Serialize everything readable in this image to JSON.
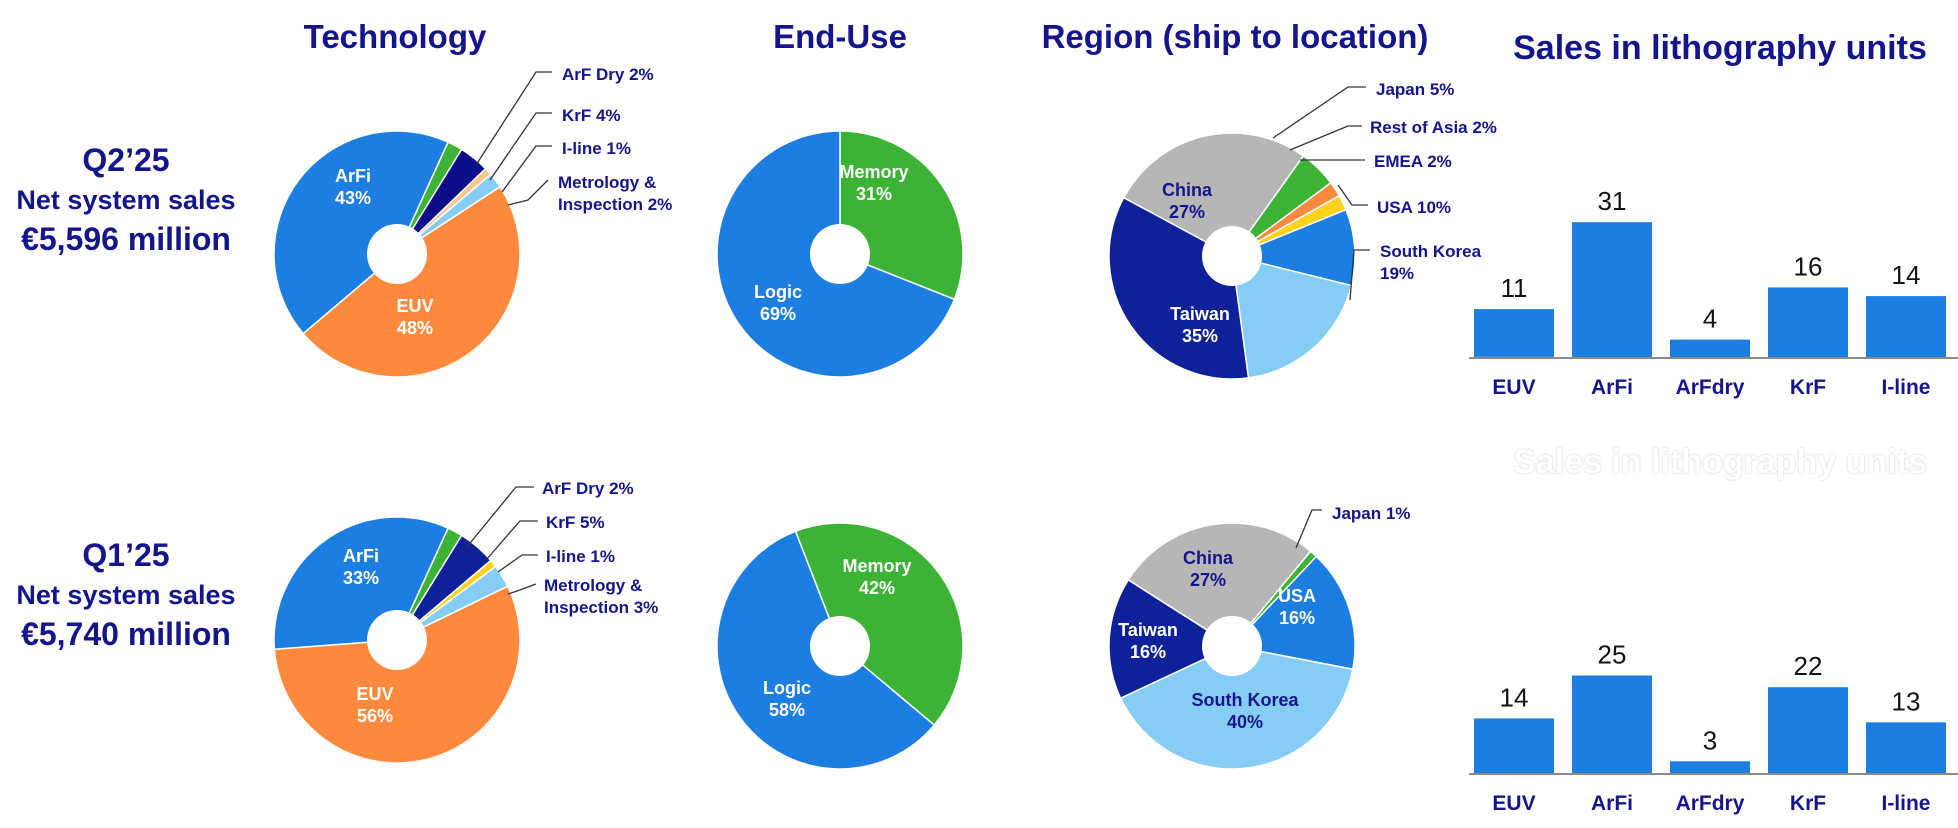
{
  "rows": [
    {
      "quarter": "Q2’25",
      "subtitle": "Net system sales",
      "amount": "€5,596 million"
    },
    {
      "quarter": "Q1’25",
      "subtitle": "Net system sales",
      "amount": "€5,740 million"
    }
  ],
  "titles": {
    "technology": "Technology",
    "end_use": "End-Use",
    "region": "Region (ship to location)",
    "lithography": "Sales in lithography units",
    "lithography_faded": "Sales in lithography units"
  },
  "colors": {
    "title_navy": "#14148c",
    "blue": "#1b7ee0",
    "orange": "#ff8a3d",
    "green": "#3cb335",
    "navy": "#0d0d8a",
    "peach": "#ffc58a",
    "light_blue": "#86cdf5",
    "yellow": "#ffd21f",
    "gray": "#b6b6b6",
    "dark_blue": "#0d2299",
    "bar_blue": "#1b7ee0"
  },
  "chart_data": [
    {
      "type": "pie",
      "id": "tech-q2",
      "title": "Technology",
      "slices": [
        {
          "label": "EUV",
          "value": 48,
          "color": "#ff8a3d"
        },
        {
          "label": "ArFi",
          "value": 43,
          "color": "#1b7ee0"
        },
        {
          "label": "ArF Dry",
          "value": 2,
          "color": "#3cb335"
        },
        {
          "label": "KrF",
          "value": 4,
          "color": "#0d0d8a"
        },
        {
          "label": "I-line",
          "value": 1,
          "color": "#ffc58a"
        },
        {
          "label": "Metrology & Inspection",
          "value": 2,
          "color": "#86cdf5"
        }
      ]
    },
    {
      "type": "pie",
      "id": "enduse-q2",
      "title": "End-Use",
      "slices": [
        {
          "label": "Memory",
          "value": 31,
          "color": "#3cb335"
        },
        {
          "label": "Logic",
          "value": 69,
          "color": "#1b7ee0"
        }
      ]
    },
    {
      "type": "pie",
      "id": "region-q2",
      "title": "Region (ship to location)",
      "slices": [
        {
          "label": "China",
          "value": 27,
          "color": "#b6b6b6"
        },
        {
          "label": "Japan",
          "value": 5,
          "color": "#3cb335"
        },
        {
          "label": "Rest of Asia",
          "value": 2,
          "color": "#ff8a3d"
        },
        {
          "label": "EMEA",
          "value": 2,
          "color": "#ffd21f"
        },
        {
          "label": "USA",
          "value": 10,
          "color": "#1b7ee0"
        },
        {
          "label": "South Korea",
          "value": 19,
          "color": "#86cdf5"
        },
        {
          "label": "Taiwan",
          "value": 35,
          "color": "#0d2299"
        }
      ]
    },
    {
      "type": "bar",
      "id": "lith-q2",
      "title": "Sales in lithography units",
      "categories": [
        "EUV",
        "ArFi",
        "ArFdry",
        "KrF",
        "I-line"
      ],
      "values": [
        11,
        31,
        4,
        16,
        14
      ],
      "ylim": [
        0,
        35
      ]
    },
    {
      "type": "pie",
      "id": "tech-q1",
      "title": "Technology",
      "slices": [
        {
          "label": "EUV",
          "value": 56,
          "color": "#ff8a3d"
        },
        {
          "label": "ArFi",
          "value": 33,
          "color": "#1b7ee0"
        },
        {
          "label": "ArF Dry",
          "value": 2,
          "color": "#3cb335"
        },
        {
          "label": "KrF",
          "value": 5,
          "color": "#0d2299"
        },
        {
          "label": "I-line",
          "value": 1,
          "color": "#ffd21f"
        },
        {
          "label": "Metrology & Inspection",
          "value": 3,
          "color": "#86cdf5"
        }
      ]
    },
    {
      "type": "pie",
      "id": "enduse-q1",
      "title": "End-Use",
      "slices": [
        {
          "label": "Memory",
          "value": 42,
          "color": "#3cb335"
        },
        {
          "label": "Logic",
          "value": 58,
          "color": "#1b7ee0"
        }
      ]
    },
    {
      "type": "pie",
      "id": "region-q1",
      "title": "Region (ship to location)",
      "slices": [
        {
          "label": "China",
          "value": 27,
          "color": "#b6b6b6"
        },
        {
          "label": "Japan",
          "value": 1,
          "color": "#3cb335"
        },
        {
          "label": "USA",
          "value": 16,
          "color": "#1b7ee0"
        },
        {
          "label": "South Korea",
          "value": 40,
          "color": "#86cdf5"
        },
        {
          "label": "Taiwan",
          "value": 16,
          "color": "#0d2299"
        }
      ]
    },
    {
      "type": "bar",
      "id": "lith-q1",
      "title": "Sales in lithography units",
      "categories": [
        "EUV",
        "ArFi",
        "ArFdry",
        "KrF",
        "I-line"
      ],
      "values": [
        14,
        25,
        3,
        22,
        13
      ],
      "ylim": [
        0,
        35
      ]
    }
  ],
  "labels": {
    "tech-q2": {
      "inside": [
        "EUV|48%",
        "ArFi|43%"
      ],
      "callouts": [
        "ArF Dry 2%",
        "KrF 4%",
        "I-line 1%",
        "Metrology &|Inspection 2%"
      ]
    },
    "enduse-q2": {
      "inside": [
        "Memory|31%",
        "Logic|69%"
      ]
    },
    "region-q2": {
      "inside": [
        "China|27%",
        "Taiwan|35%"
      ],
      "callouts": [
        "Japan 5%",
        "Rest of Asia 2%",
        "EMEA 2%",
        "USA 10%",
        "South Korea|19%"
      ]
    },
    "tech-q1": {
      "inside": [
        "EUV|56%",
        "ArFi|33%"
      ],
      "callouts": [
        "ArF Dry 2%",
        "KrF 5%",
        "I-line 1%",
        "Metrology &|Inspection 3%"
      ]
    },
    "enduse-q1": {
      "inside": [
        "Memory|42%",
        "Logic|58%"
      ]
    },
    "region-q1": {
      "inside": [
        "China|27%",
        "USA|16%",
        "South Korea|40%",
        "Taiwan|16%"
      ],
      "callouts": [
        "Japan 1%"
      ]
    }
  }
}
